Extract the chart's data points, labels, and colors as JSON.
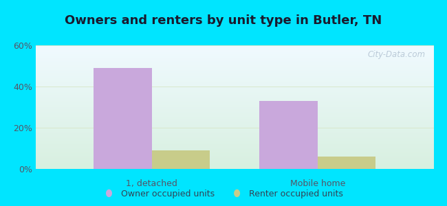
{
  "title": "Owners and renters by unit type in Butler, TN",
  "categories": [
    "1, detached",
    "Mobile home"
  ],
  "owner_values": [
    49,
    33
  ],
  "renter_values": [
    9,
    6
  ],
  "owner_color": "#c9a8dc",
  "renter_color": "#c8cc8a",
  "ylim": [
    0,
    60
  ],
  "yticks": [
    0,
    20,
    40,
    60
  ],
  "ytick_labels": [
    "0%",
    "20%",
    "40%",
    "60%"
  ],
  "bar_width": 0.35,
  "background_outer": "#00e5ff",
  "title_fontsize": 13,
  "tick_fontsize": 9,
  "legend_labels": [
    "Owner occupied units",
    "Renter occupied units"
  ],
  "watermark": "City-Data.com",
  "title_color": "#1a1a2e",
  "tick_color": "#555566",
  "legend_color": "#334455"
}
